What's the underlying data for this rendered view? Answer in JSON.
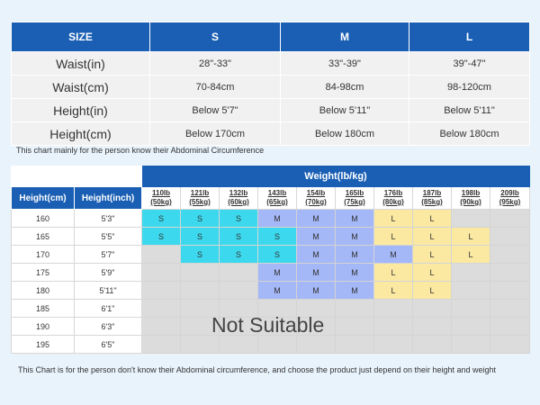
{
  "table1": {
    "headers": [
      "SIZE",
      "S",
      "M",
      "L"
    ],
    "rows": [
      {
        "label": "Waist(in)",
        "values": [
          "28\"-33\"",
          "33\"-39\"",
          "39\"-47\""
        ]
      },
      {
        "label": "Waist(cm)",
        "values": [
          "70-84cm",
          "84-98cm",
          "98-120cm"
        ]
      },
      {
        "label": "Height(in)",
        "values": [
          "Below 5'7\"",
          "Below 5'11\"",
          "Below 5'11\""
        ]
      },
      {
        "label": "Height(cm)",
        "values": [
          "Below 170cm",
          "Below 180cm",
          "Below 180cm"
        ]
      }
    ],
    "note": "This chart mainly  for the person know their Abdominal Circumference"
  },
  "table2": {
    "weight_title": "Weight(lb/kg)",
    "height_cm_header": "Height(cm)",
    "height_inch_header": "Height(inch)",
    "weights": [
      {
        "lb": "110lb",
        "kg": "(50kg)"
      },
      {
        "lb": "121lb",
        "kg": "(55kg)"
      },
      {
        "lb": "132lb",
        "kg": "(60kg)"
      },
      {
        "lb": "143lb",
        "kg": "(65kg)"
      },
      {
        "lb": "154lb",
        "kg": "(70kg)"
      },
      {
        "lb": "165lb",
        "kg": "(75kg)"
      },
      {
        "lb": "176lb",
        "kg": "(80kg)"
      },
      {
        "lb": "187lb",
        "kg": "(85kg)"
      },
      {
        "lb": "198lb",
        "kg": "(90kg)"
      },
      {
        "lb": "209lb",
        "kg": "(95kg)"
      }
    ],
    "rows": [
      {
        "cm": "160",
        "inch": "5'3\"",
        "cells": [
          "S",
          "S",
          "S",
          "M",
          "M",
          "M",
          "L",
          "L",
          "",
          ""
        ]
      },
      {
        "cm": "165",
        "inch": "5'5\"",
        "cells": [
          "S",
          "S",
          "S",
          "S",
          "M",
          "M",
          "L",
          "L",
          "L",
          ""
        ]
      },
      {
        "cm": "170",
        "inch": "5'7\"",
        "cells": [
          "",
          "S",
          "S",
          "S",
          "M",
          "M",
          "M",
          "L",
          "L",
          ""
        ]
      },
      {
        "cm": "175",
        "inch": "5'9\"",
        "cells": [
          "",
          "",
          "",
          "M",
          "M",
          "M",
          "L",
          "L",
          "",
          ""
        ]
      },
      {
        "cm": "180",
        "inch": "5'11\"",
        "cells": [
          "",
          "",
          "",
          "M",
          "M",
          "M",
          "L",
          "L",
          "",
          ""
        ]
      },
      {
        "cm": "185",
        "inch": "6'1\"",
        "cells": [
          "",
          "",
          "",
          "",
          "",
          "",
          "",
          "",
          "",
          ""
        ]
      },
      {
        "cm": "190",
        "inch": "6'3\"",
        "cells": [
          "",
          "",
          "",
          "",
          "",
          "",
          "",
          "",
          "",
          ""
        ]
      },
      {
        "cm": "195",
        "inch": "6'5\"",
        "cells": [
          "",
          "",
          "",
          "",
          "",
          "",
          "",
          "",
          "",
          ""
        ]
      }
    ],
    "not_suitable": "Not Suitable",
    "note": "This Chart is for the person don't know their Abdominal circumference, and choose the product just depend on their height and weight"
  },
  "colors": {
    "header_blue": "#1a5fb4",
    "S": "#3cd9ee",
    "M": "#a4b7f7",
    "L": "#fbe9a1",
    "not_suitable": "#dcdcdc",
    "background": "#e9f3fc"
  }
}
